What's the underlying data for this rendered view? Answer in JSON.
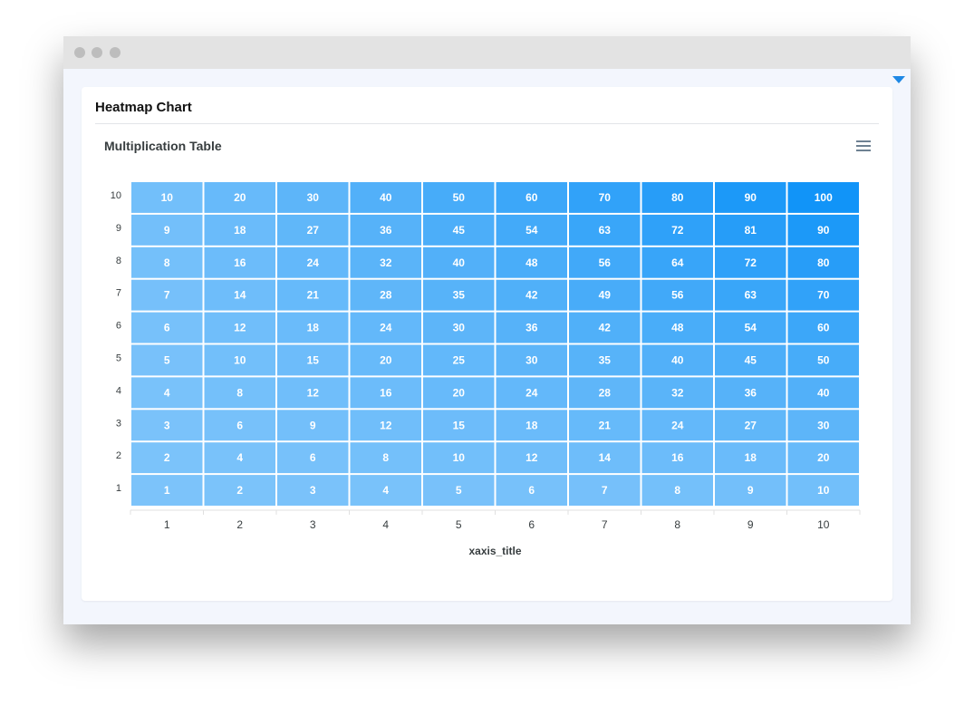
{
  "page": {
    "card_title": "Heatmap Chart"
  },
  "chart_data": {
    "type": "heatmap",
    "title": "Multiplication Table",
    "xlabel": "xaxis_title",
    "ylabel": "",
    "x_categories": [
      "1",
      "2",
      "3",
      "4",
      "5",
      "6",
      "7",
      "8",
      "9",
      "10"
    ],
    "y_categories": [
      "1",
      "2",
      "3",
      "4",
      "5",
      "6",
      "7",
      "8",
      "9",
      "10"
    ],
    "values": [
      [
        1,
        2,
        3,
        4,
        5,
        6,
        7,
        8,
        9,
        10
      ],
      [
        2,
        4,
        6,
        8,
        10,
        12,
        14,
        16,
        18,
        20
      ],
      [
        3,
        6,
        9,
        12,
        15,
        18,
        21,
        24,
        27,
        30
      ],
      [
        4,
        8,
        12,
        16,
        20,
        24,
        28,
        32,
        36,
        40
      ],
      [
        5,
        10,
        15,
        20,
        25,
        30,
        35,
        40,
        45,
        50
      ],
      [
        6,
        12,
        18,
        24,
        30,
        36,
        42,
        48,
        54,
        60
      ],
      [
        7,
        14,
        21,
        28,
        35,
        42,
        49,
        56,
        63,
        70
      ],
      [
        8,
        16,
        24,
        32,
        40,
        48,
        56,
        64,
        72,
        80
      ],
      [
        9,
        18,
        27,
        36,
        45,
        54,
        63,
        72,
        81,
        90
      ],
      [
        10,
        20,
        30,
        40,
        50,
        60,
        70,
        80,
        90,
        100
      ]
    ],
    "color_min": "#7cc3fa",
    "color_max": "#1194f8",
    "data_labels": true,
    "legend": "none"
  }
}
